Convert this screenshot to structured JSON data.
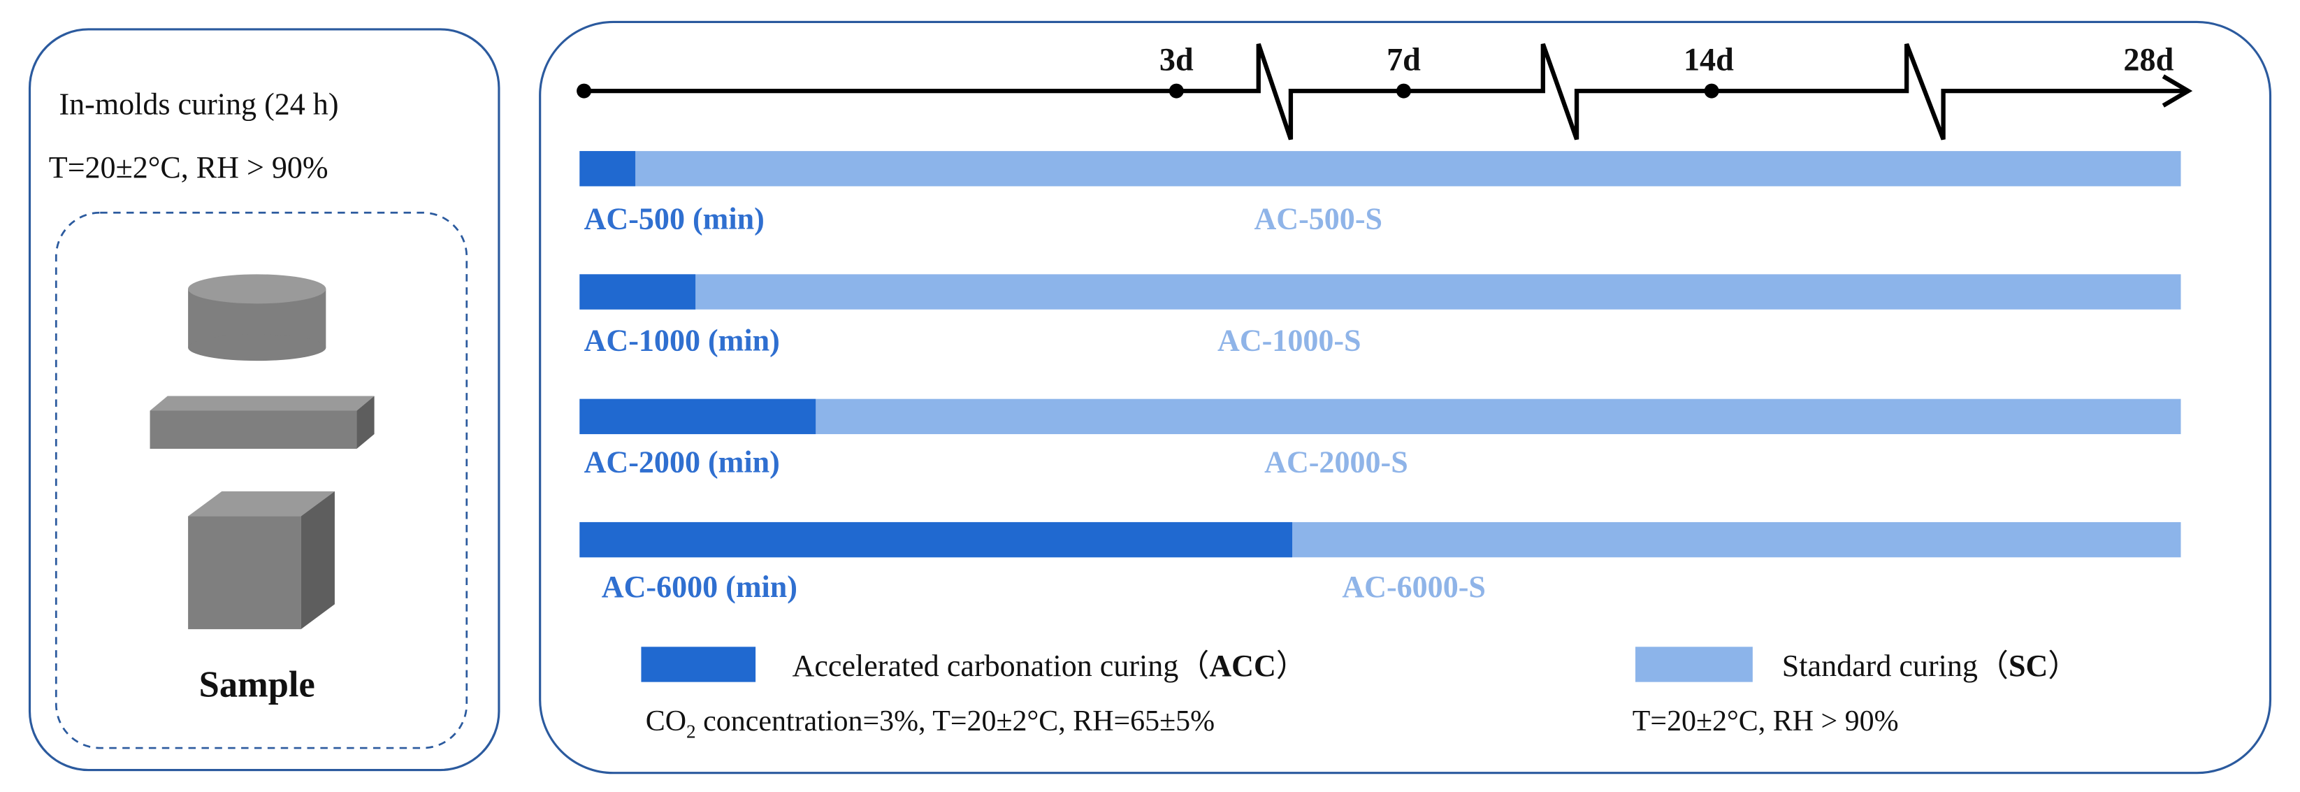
{
  "left_panel": {
    "title": "In-molds curing (24 h)",
    "condition": "T=20±2°C, RH > 90%",
    "sample_label": "Sample"
  },
  "timeline": {
    "ticks": [
      "3d",
      "7d",
      "14d",
      "28d"
    ]
  },
  "groups": [
    {
      "acc_label": "AC-500 (min)",
      "sc_label": "AC-500-S"
    },
    {
      "acc_label": "AC-1000 (min)",
      "sc_label": "AC-1000-S"
    },
    {
      "acc_label": "AC-2000 (min)",
      "sc_label": "AC-2000-S"
    },
    {
      "acc_label": "AC-6000 (min)",
      "sc_label": "AC-6000-S"
    }
  ],
  "legend": [
    {
      "label": "Accelerated carbonation curing（",
      "abbr": "ACC",
      "close": "）",
      "condition": [
        "CO",
        "2",
        " concentration=3%, T=20±2°C, RH=65±5%"
      ]
    },
    {
      "label": "Standard curing（",
      "abbr": "SC",
      "close": "）",
      "condition": [
        "T=20±2°C, RH > 90%"
      ]
    }
  ]
}
